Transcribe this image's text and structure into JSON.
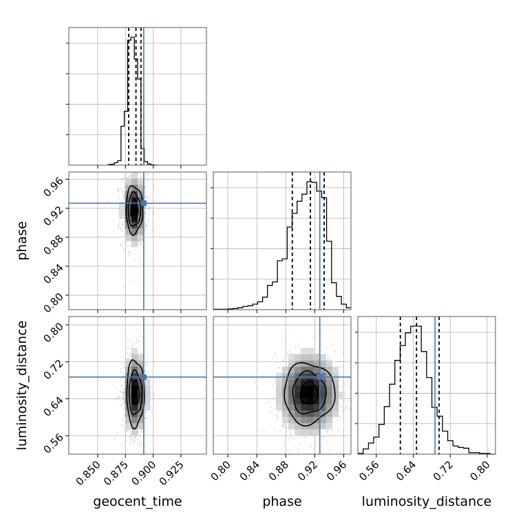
{
  "chart_data": {
    "type": "corner",
    "parameters": [
      "geocent_time",
      "phase",
      "luminosity_distance"
    ],
    "axis_labels": {
      "geocent_time": "geocent_time",
      "phase": "phase",
      "luminosity_distance": "luminosity_distance"
    },
    "ranges": {
      "geocent_time": [
        0.824,
        0.948
      ],
      "phase": [
        0.78,
        0.97
      ],
      "luminosity_distance": [
        0.52,
        0.818
      ]
    },
    "ticks": {
      "geocent_time": [
        {
          "value": 0.85,
          "label": "0.850"
        },
        {
          "value": 0.875,
          "label": "0.875"
        },
        {
          "value": 0.9,
          "label": "0.900"
        },
        {
          "value": 0.925,
          "label": "0.925"
        }
      ],
      "phase": [
        {
          "value": 0.8,
          "label": "0.80"
        },
        {
          "value": 0.84,
          "label": "0.84"
        },
        {
          "value": 0.88,
          "label": "0.88"
        },
        {
          "value": 0.92,
          "label": "0.92"
        },
        {
          "value": 0.96,
          "label": "0.96"
        }
      ],
      "luminosity_distance": [
        {
          "value": 0.56,
          "label": "0.56"
        },
        {
          "value": 0.64,
          "label": "0.64"
        },
        {
          "value": 0.72,
          "label": "0.72"
        },
        {
          "value": 0.8,
          "label": "0.80"
        }
      ]
    },
    "truths": {
      "geocent_time": 0.8915,
      "phase": 0.927,
      "luminosity_distance": 0.687
    },
    "quantiles": {
      "geocent_time": [
        0.878,
        0.8845,
        0.889
      ],
      "phase": [
        0.889,
        0.914,
        0.933
      ],
      "luminosity_distance": [
        0.612,
        0.647,
        0.696
      ]
    },
    "histograms": {
      "geocent_time": {
        "edges": [
          0.859,
          0.862,
          0.865,
          0.868,
          0.871,
          0.874,
          0.877,
          0.88,
          0.883,
          0.886,
          0.889,
          0.892,
          0.895,
          0.898,
          0.901,
          0.904
        ],
        "counts": [
          2,
          3,
          8,
          15,
          130,
          180,
          418,
          428,
          355,
          288,
          55,
          12,
          4,
          1,
          0
        ]
      },
      "phase": {
        "edges": [
          0.78,
          0.7868,
          0.7936,
          0.8004,
          0.8072,
          0.814,
          0.8208,
          0.8276,
          0.8344,
          0.8412,
          0.848,
          0.8548,
          0.8616,
          0.8684,
          0.8752,
          0.882,
          0.8888,
          0.8956,
          0.9024,
          0.9092,
          0.916,
          0.9228,
          0.9296,
          0.9364,
          0.9432,
          0.95,
          0.9568,
          0.9636,
          0.97
        ],
        "counts": [
          1,
          1,
          1,
          2,
          3,
          5,
          8,
          10,
          14,
          20,
          32,
          62,
          71,
          125,
          130,
          211,
          246,
          277,
          295,
          327,
          325,
          303,
          286,
          175,
          69,
          34,
          14,
          5
        ]
      },
      "luminosity_distance": {
        "edges": [
          0.52,
          0.5314,
          0.5429,
          0.5543,
          0.5658,
          0.5772,
          0.5887,
          0.6001,
          0.6116,
          0.623,
          0.6345,
          0.6459,
          0.6574,
          0.6688,
          0.6803,
          0.6917,
          0.7032,
          0.7146,
          0.7261,
          0.7375,
          0.749,
          0.7604,
          0.7719,
          0.7833,
          0.7948,
          0.8062,
          0.818
        ],
        "counts": [
          1,
          7,
          15,
          23,
          40,
          64,
          94,
          126,
          146,
          163,
          172,
          172,
          138,
          103,
          63,
          51,
          31,
          18,
          11,
          9,
          8,
          2,
          2,
          1,
          1,
          0
        ]
      }
    },
    "pairs": [
      {
        "x": "geocent_time",
        "y": "phase",
        "center": [
          0.883,
          0.918
        ],
        "spread": [
          0.0055,
          0.024
        ],
        "contours": [
          [
            0.0032,
            0.013
          ],
          [
            0.0056,
            0.023
          ],
          [
            0.0076,
            0.033
          ]
        ]
      },
      {
        "x": "geocent_time",
        "y": "luminosity_distance",
        "center": [
          0.884,
          0.652
        ],
        "spread": [
          0.0055,
          0.045
        ],
        "contours": [
          [
            0.0033,
            0.026
          ],
          [
            0.0058,
            0.047
          ],
          [
            0.008,
            0.072
          ]
        ]
      },
      {
        "x": "phase",
        "y": "luminosity_distance",
        "center": [
          0.912,
          0.652
        ],
        "spread": [
          0.022,
          0.045
        ],
        "contours": [
          [
            0.012,
            0.024
          ],
          [
            0.023,
            0.045
          ],
          [
            0.035,
            0.066
          ]
        ]
      }
    ],
    "grid": true,
    "colors": {
      "truth": "#4477bb",
      "hist": "#000000",
      "contour": "#000000",
      "grid": "#b0b0b0"
    }
  }
}
